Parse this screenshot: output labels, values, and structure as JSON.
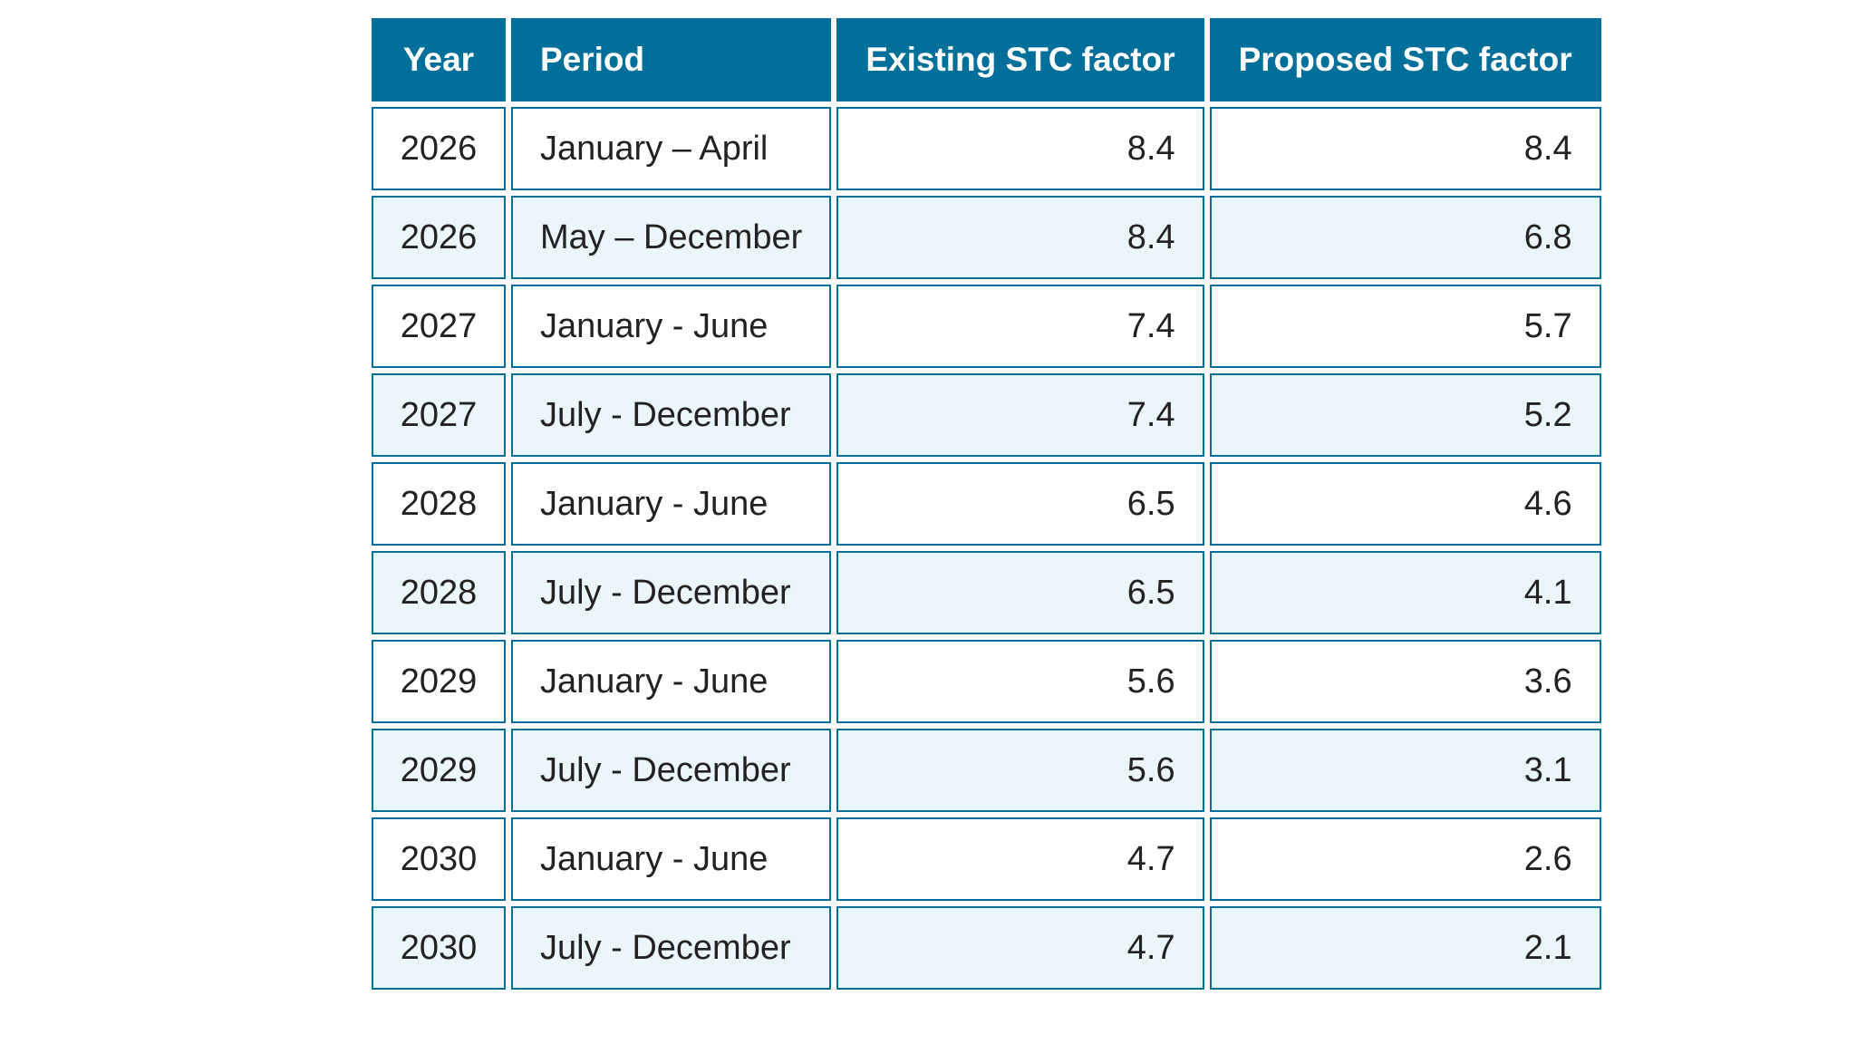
{
  "table": {
    "headers": {
      "year": "Year",
      "period": "Period",
      "existing": "Existing STC factor",
      "proposed": "Proposed STC factor"
    },
    "rows": [
      {
        "year": "2026",
        "period": "January – April",
        "existing": "8.4",
        "proposed": "8.4"
      },
      {
        "year": "2026",
        "period": "May – December",
        "existing": "8.4",
        "proposed": "6.8"
      },
      {
        "year": "2027",
        "period": "January - June",
        "existing": "7.4",
        "proposed": "5.7"
      },
      {
        "year": "2027",
        "period": "July - December",
        "existing": "7.4",
        "proposed": "5.2"
      },
      {
        "year": "2028",
        "period": "January - June",
        "existing": "6.5",
        "proposed": "4.6"
      },
      {
        "year": "2028",
        "period": "July - December",
        "existing": "6.5",
        "proposed": "4.1"
      },
      {
        "year": "2029",
        "period": "January - June",
        "existing": "5.6",
        "proposed": "3.6"
      },
      {
        "year": "2029",
        "period": "July - December",
        "existing": "5.6",
        "proposed": "3.1"
      },
      {
        "year": "2030",
        "period": "January - June",
        "existing": "4.7",
        "proposed": "2.6"
      },
      {
        "year": "2030",
        "period": "July - December",
        "existing": "4.7",
        "proposed": "2.1"
      }
    ]
  },
  "colors": {
    "header_bg": "#006f9a",
    "header_text": "#ffffff",
    "border": "#006f9a",
    "row_alt_bg": "#eaf6f9",
    "row_bg": "#ffffff"
  }
}
